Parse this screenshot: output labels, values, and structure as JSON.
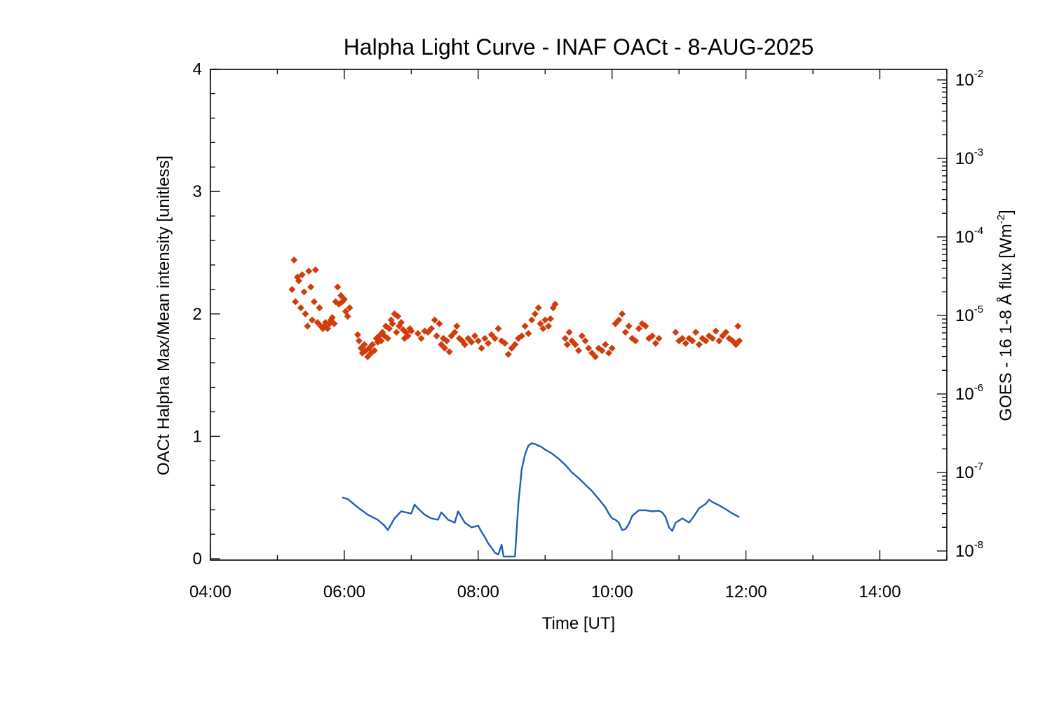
{
  "chart_data": {
    "type": "scatter",
    "title": "Halpha Light Curve - INAF OACt -  8-AUG-2025",
    "xlabel": "Time [UT]",
    "ylabel": "OACt Halpha Max/Mean intensity [unitless]",
    "ylabel_right": "GOES - 16 1-8 Å flux [Wm",
    "ylabel_right_exponent": "-2",
    "ylabel_right_suffix": "]",
    "x_unit": "hours UT",
    "xlim": [
      4.0,
      15.0
    ],
    "ylim": [
      0,
      4
    ],
    "y2lim": [
      1e-08,
      0.01
    ],
    "y2scale": "log",
    "x_ticks": [
      {
        "value": 4,
        "label": "04:00"
      },
      {
        "value": 6,
        "label": "06:00"
      },
      {
        "value": 8,
        "label": "08:00"
      },
      {
        "value": 10,
        "label": "10:00"
      },
      {
        "value": 12,
        "label": "12:00"
      },
      {
        "value": 14,
        "label": "14:00"
      }
    ],
    "y_ticks": [
      {
        "value": 0,
        "label": "0"
      },
      {
        "value": 1,
        "label": "1"
      },
      {
        "value": 2,
        "label": "2"
      },
      {
        "value": 3,
        "label": "3"
      },
      {
        "value": 4,
        "label": "4"
      }
    ],
    "y2_ticks": [
      {
        "value": 1e-08,
        "base": "10",
        "exponent": "-8"
      },
      {
        "value": 1e-07,
        "base": "10",
        "exponent": "-7"
      },
      {
        "value": 1e-06,
        "base": "10",
        "exponent": "-6"
      },
      {
        "value": 1e-05,
        "base": "10",
        "exponent": "-5"
      },
      {
        "value": 0.0001,
        "base": "10",
        "exponent": "-4"
      },
      {
        "value": 0.001,
        "base": "10",
        "exponent": "-3"
      },
      {
        "value": 0.01,
        "base": "10",
        "exponent": "-2"
      }
    ],
    "grid": false,
    "series": [
      {
        "color": "#d03c0a",
        "marker": "diamond",
        "axis": "left",
        "points": [
          [
            5.22,
            2.2
          ],
          [
            5.25,
            2.44
          ],
          [
            5.27,
            2.1
          ],
          [
            5.3,
            2.3
          ],
          [
            5.32,
            2.27
          ],
          [
            5.35,
            2.05
          ],
          [
            5.37,
            2.32
          ],
          [
            5.4,
            2.18
          ],
          [
            5.42,
            2.0
          ],
          [
            5.45,
            1.9
          ],
          [
            5.47,
            2.35
          ],
          [
            5.5,
            2.22
          ],
          [
            5.52,
            1.95
          ],
          [
            5.55,
            2.1
          ],
          [
            5.57,
            2.36
          ],
          [
            5.6,
            1.93
          ],
          [
            5.63,
            2.05
          ],
          [
            5.65,
            1.9
          ],
          [
            5.68,
            1.88
          ],
          [
            5.7,
            1.9
          ],
          [
            5.72,
            1.93
          ],
          [
            5.75,
            1.88
          ],
          [
            5.78,
            1.92
          ],
          [
            5.8,
            1.95
          ],
          [
            5.82,
            1.97
          ],
          [
            5.85,
            1.92
          ],
          [
            5.87,
            2.1
          ],
          [
            5.9,
            2.22
          ],
          [
            5.92,
            2.08
          ],
          [
            5.95,
            2.15
          ],
          [
            5.97,
            2.1
          ],
          [
            6.0,
            2.12
          ],
          [
            6.02,
            2.02
          ],
          [
            6.05,
            1.98
          ],
          [
            6.08,
            2.05
          ],
          [
            6.2,
            1.83
          ],
          [
            6.22,
            1.78
          ],
          [
            6.25,
            1.72
          ],
          [
            6.27,
            1.68
          ],
          [
            6.3,
            1.75
          ],
          [
            6.32,
            1.7
          ],
          [
            6.35,
            1.65
          ],
          [
            6.37,
            1.72
          ],
          [
            6.4,
            1.68
          ],
          [
            6.42,
            1.75
          ],
          [
            6.45,
            1.7
          ],
          [
            6.48,
            1.8
          ],
          [
            6.5,
            1.77
          ],
          [
            6.52,
            1.82
          ],
          [
            6.55,
            1.78
          ],
          [
            6.57,
            1.85
          ],
          [
            6.6,
            1.82
          ],
          [
            6.62,
            1.9
          ],
          [
            6.65,
            1.8
          ],
          [
            6.67,
            1.88
          ],
          [
            6.7,
            1.95
          ],
          [
            6.72,
            1.92
          ],
          [
            6.75,
            2.0
          ],
          [
            6.78,
            1.85
          ],
          [
            6.8,
            1.98
          ],
          [
            6.82,
            1.9
          ],
          [
            6.85,
            1.93
          ],
          [
            6.88,
            1.87
          ],
          [
            6.9,
            1.8
          ],
          [
            6.92,
            1.85
          ],
          [
            6.95,
            1.82
          ],
          [
            6.98,
            1.88
          ],
          [
            7.0,
            1.86
          ],
          [
            7.1,
            1.84
          ],
          [
            7.15,
            1.8
          ],
          [
            7.2,
            1.86
          ],
          [
            7.25,
            1.85
          ],
          [
            7.3,
            1.88
          ],
          [
            7.35,
            1.95
          ],
          [
            7.38,
            1.82
          ],
          [
            7.42,
            1.92
          ],
          [
            7.45,
            1.75
          ],
          [
            7.48,
            1.8
          ],
          [
            7.5,
            1.72
          ],
          [
            7.53,
            1.78
          ],
          [
            7.57,
            1.69
          ],
          [
            7.6,
            1.82
          ],
          [
            7.65,
            1.85
          ],
          [
            7.68,
            1.9
          ],
          [
            7.72,
            1.8
          ],
          [
            7.76,
            1.78
          ],
          [
            7.8,
            1.75
          ],
          [
            7.85,
            1.8
          ],
          [
            7.9,
            1.77
          ],
          [
            7.95,
            1.82
          ],
          [
            8.0,
            1.78
          ],
          [
            8.05,
            1.72
          ],
          [
            8.1,
            1.8
          ],
          [
            8.15,
            1.76
          ],
          [
            8.2,
            1.83
          ],
          [
            8.25,
            1.8
          ],
          [
            8.3,
            1.88
          ],
          [
            8.35,
            1.78
          ],
          [
            8.4,
            1.76
          ],
          [
            8.45,
            1.67
          ],
          [
            8.5,
            1.72
          ],
          [
            8.55,
            1.75
          ],
          [
            8.6,
            1.8
          ],
          [
            8.65,
            1.82
          ],
          [
            8.7,
            1.9
          ],
          [
            8.75,
            1.84
          ],
          [
            8.8,
            1.95
          ],
          [
            8.85,
            2.0
          ],
          [
            8.9,
            2.05
          ],
          [
            8.93,
            1.92
          ],
          [
            8.97,
            1.88
          ],
          [
            9.0,
            1.95
          ],
          [
            9.05,
            1.9
          ],
          [
            9.08,
            1.96
          ],
          [
            9.12,
            2.05
          ],
          [
            9.15,
            2.08
          ],
          [
            9.3,
            1.8
          ],
          [
            9.33,
            1.75
          ],
          [
            9.36,
            1.85
          ],
          [
            9.4,
            1.78
          ],
          [
            9.45,
            1.75
          ],
          [
            9.5,
            1.7
          ],
          [
            9.55,
            1.82
          ],
          [
            9.6,
            1.78
          ],
          [
            9.65,
            1.72
          ],
          [
            9.7,
            1.68
          ],
          [
            9.75,
            1.65
          ],
          [
            9.8,
            1.72
          ],
          [
            9.85,
            1.7
          ],
          [
            9.9,
            1.75
          ],
          [
            9.95,
            1.68
          ],
          [
            10.0,
            1.72
          ],
          [
            10.05,
            1.92
          ],
          [
            10.1,
            1.95
          ],
          [
            10.15,
            2.0
          ],
          [
            10.2,
            1.85
          ],
          [
            10.25,
            1.9
          ],
          [
            10.3,
            1.8
          ],
          [
            10.35,
            1.78
          ],
          [
            10.4,
            1.88
          ],
          [
            10.45,
            1.92
          ],
          [
            10.5,
            1.9
          ],
          [
            10.55,
            1.8
          ],
          [
            10.6,
            1.82
          ],
          [
            10.65,
            1.76
          ],
          [
            10.7,
            1.8
          ],
          [
            10.95,
            1.85
          ],
          [
            11.0,
            1.78
          ],
          [
            11.05,
            1.8
          ],
          [
            11.1,
            1.76
          ],
          [
            11.15,
            1.8
          ],
          [
            11.2,
            1.78
          ],
          [
            11.25,
            1.85
          ],
          [
            11.3,
            1.75
          ],
          [
            11.35,
            1.8
          ],
          [
            11.4,
            1.78
          ],
          [
            11.45,
            1.82
          ],
          [
            11.5,
            1.8
          ],
          [
            11.55,
            1.86
          ],
          [
            11.6,
            1.78
          ],
          [
            11.65,
            1.82
          ],
          [
            11.7,
            1.85
          ],
          [
            11.75,
            1.8
          ],
          [
            11.8,
            1.78
          ],
          [
            11.85,
            1.75
          ],
          [
            11.88,
            1.9
          ],
          [
            11.9,
            1.78
          ]
        ]
      },
      {
        "color": "#1f5fb4",
        "marker": "line",
        "axis": "right",
        "points": [
          [
            5.97,
            4.8e-08
          ],
          [
            6.05,
            4.6e-08
          ],
          [
            6.2,
            3.6e-08
          ],
          [
            6.35,
            2.9e-08
          ],
          [
            6.5,
            2.5e-08
          ],
          [
            6.6,
            2.1e-08
          ],
          [
            6.65,
            1.85e-08
          ],
          [
            6.75,
            2.6e-08
          ],
          [
            6.85,
            3.2e-08
          ],
          [
            7.0,
            3e-08
          ],
          [
            7.05,
            3.9e-08
          ],
          [
            7.1,
            3.5e-08
          ],
          [
            7.2,
            2.9e-08
          ],
          [
            7.3,
            2.6e-08
          ],
          [
            7.4,
            2.5e-08
          ],
          [
            7.45,
            3.1e-08
          ],
          [
            7.55,
            2.5e-08
          ],
          [
            7.65,
            2.3e-08
          ],
          [
            7.7,
            3.2e-08
          ],
          [
            7.8,
            2.3e-08
          ],
          [
            7.9,
            2e-08
          ],
          [
            8.0,
            2.1e-08
          ],
          [
            8.05,
            1.75e-08
          ],
          [
            8.1,
            1.5e-08
          ],
          [
            8.15,
            1.25e-08
          ],
          [
            8.2,
            1.1e-08
          ],
          [
            8.25,
            9.5e-09
          ],
          [
            8.3,
            9e-09
          ],
          [
            8.35,
            1.2e-08
          ],
          [
            8.38,
            8.5e-09
          ],
          [
            8.55,
            8.5e-09
          ],
          [
            8.6,
            4e-08
          ],
          [
            8.65,
            1.1e-07
          ],
          [
            8.7,
            1.7e-07
          ],
          [
            8.75,
            2.2e-07
          ],
          [
            8.8,
            2.35e-07
          ],
          [
            8.85,
            2.3e-07
          ],
          [
            8.9,
            2.2e-07
          ],
          [
            8.95,
            2.1e-07
          ],
          [
            9.0,
            1.95e-07
          ],
          [
            9.1,
            1.75e-07
          ],
          [
            9.2,
            1.5e-07
          ],
          [
            9.3,
            1.25e-07
          ],
          [
            9.4,
            1e-07
          ],
          [
            9.5,
            8.5e-08
          ],
          [
            9.6,
            7e-08
          ],
          [
            9.7,
            5.8e-08
          ],
          [
            9.8,
            4.6e-08
          ],
          [
            9.9,
            3.6e-08
          ],
          [
            9.95,
            3e-08
          ],
          [
            10.0,
            2.6e-08
          ],
          [
            10.05,
            2.5e-08
          ],
          [
            10.1,
            2.3e-08
          ],
          [
            10.15,
            1.85e-08
          ],
          [
            10.2,
            1.9e-08
          ],
          [
            10.25,
            2.2e-08
          ],
          [
            10.3,
            2.8e-08
          ],
          [
            10.4,
            3.3e-08
          ],
          [
            10.5,
            3.3e-08
          ],
          [
            10.6,
            3.2e-08
          ],
          [
            10.7,
            3.25e-08
          ],
          [
            10.75,
            3.1e-08
          ],
          [
            10.8,
            2.7e-08
          ],
          [
            10.85,
            2e-08
          ],
          [
            10.9,
            1.8e-08
          ],
          [
            10.95,
            2.3e-08
          ],
          [
            11.05,
            2.6e-08
          ],
          [
            11.15,
            2.3e-08
          ],
          [
            11.2,
            2.6e-08
          ],
          [
            11.3,
            3.5e-08
          ],
          [
            11.4,
            4e-08
          ],
          [
            11.45,
            4.5e-08
          ],
          [
            11.5,
            4.2e-08
          ],
          [
            11.6,
            3.8e-08
          ],
          [
            11.7,
            3.4e-08
          ],
          [
            11.8,
            3e-08
          ],
          [
            11.9,
            2.7e-08
          ]
        ]
      }
    ]
  }
}
